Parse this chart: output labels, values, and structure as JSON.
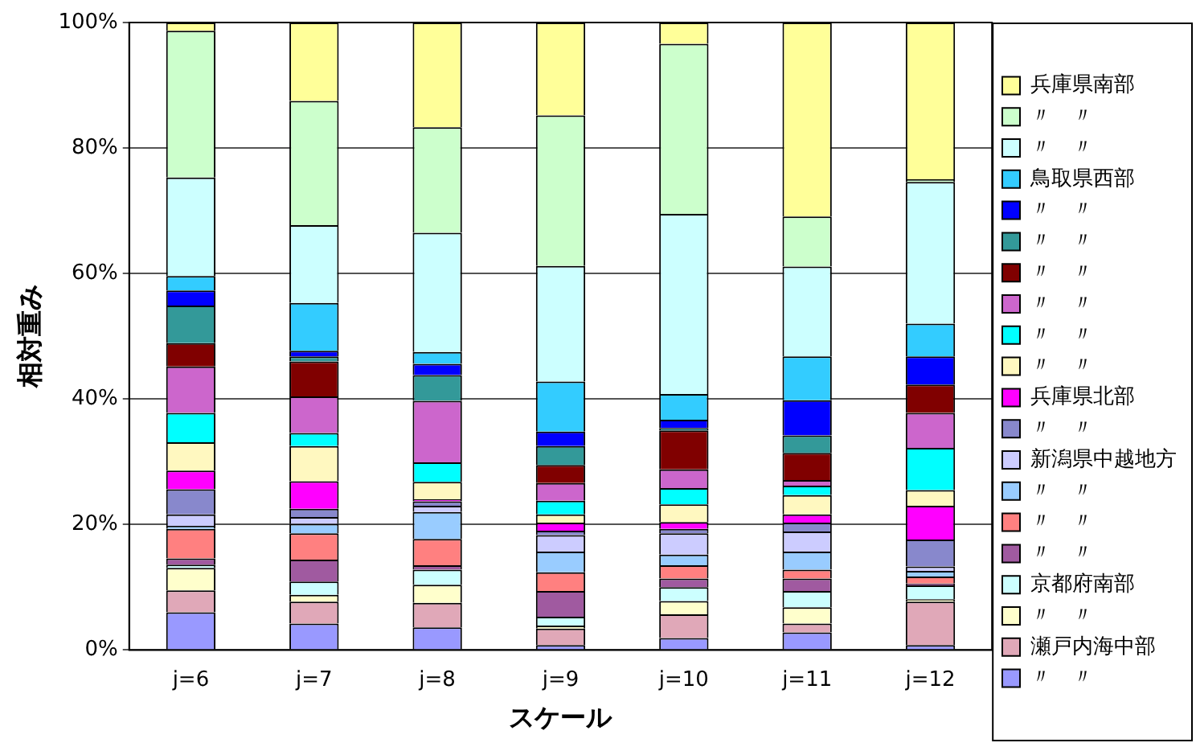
{
  "chart_data": {
    "type": "bar",
    "stacked": true,
    "xlabel": "スケール",
    "ylabel": "相対重み",
    "categories": [
      "j=6",
      "j=7",
      "j=8",
      "j=9",
      "j=10",
      "j=11",
      "j=12"
    ],
    "ylim": [
      0,
      100
    ],
    "yticks": [
      {
        "value": 0,
        "label": "0%"
      },
      {
        "value": 20,
        "label": "20%"
      },
      {
        "value": 40,
        "label": "40%"
      },
      {
        "value": 60,
        "label": "60%"
      },
      {
        "value": 80,
        "label": "80%"
      },
      {
        "value": 100,
        "label": "100%"
      }
    ],
    "grid": "y",
    "legend": "right",
    "series": [
      {
        "name": "〃　〃",
        "color": "#9999ff",
        "values": [
          6,
          4.2,
          3.6,
          0.8,
          1.9,
          2.8,
          0.8
        ]
      },
      {
        "name": "瀬戸内海中部",
        "color": "#e0a8b8",
        "values": [
          3.5,
          3.5,
          3.9,
          2.6,
          3.8,
          1.4,
          6.9
        ]
      },
      {
        "name": "〃　〃",
        "color": "#ffffcc",
        "values": [
          3.6,
          1.1,
          2.9,
          0.5,
          2.1,
          2.6,
          0.4
        ]
      },
      {
        "name": "京都府南部",
        "color": "#ccffff",
        "values": [
          0.5,
          2.1,
          2.4,
          1.4,
          2.2,
          2.6,
          2.2
        ]
      },
      {
        "name": "〃　〃",
        "color": "#a05aa0",
        "values": [
          1,
          3.5,
          0.7,
          4.1,
          1.4,
          2,
          0.3
        ]
      },
      {
        "name": "〃　〃",
        "color": "#ff8080",
        "values": [
          4.7,
          4.2,
          4.2,
          3,
          2.1,
          1.4,
          1.1
        ]
      },
      {
        "name": "〃　〃",
        "color": "#99ccff",
        "values": [
          0.5,
          1.5,
          4.3,
          3.3,
          1.7,
          2.9,
          0.9
        ]
      },
      {
        "name": "新潟県中越地方",
        "color": "#ccccff",
        "values": [
          1.8,
          1.1,
          1,
          2.6,
          3.4,
          3.2,
          0.7
        ]
      },
      {
        "name": "〃　〃",
        "color": "#8888cc",
        "values": [
          4,
          1.3,
          0.7,
          0.7,
          0.7,
          1.4,
          4.3
        ]
      },
      {
        "name": "兵庫県北部",
        "color": "#ff00ff",
        "values": [
          3,
          4.4,
          0.3,
          1.3,
          1.1,
          1.3,
          5.4
        ]
      },
      {
        "name": "〃　〃",
        "color": "#fff8c0",
        "values": [
          4.5,
          5.6,
          2.8,
          1.3,
          2.8,
          3.1,
          2.5
        ]
      },
      {
        "name": "〃　〃",
        "color": "#00ffff",
        "values": [
          4.7,
          2.1,
          3.1,
          2.2,
          2.6,
          1.5,
          6.7
        ]
      },
      {
        "name": "〃　〃",
        "color": "#cc66cc",
        "values": [
          7.4,
          5.8,
          9.8,
          2.8,
          3,
          0.9,
          5.6
        ]
      },
      {
        "name": "〃　〃",
        "color": "#800000",
        "values": [
          3.7,
          5.6,
          0,
          2.9,
          6.2,
          4.3,
          4.5
        ]
      },
      {
        "name": "〃　〃",
        "color": "#339999",
        "values": [
          6,
          0.8,
          4.1,
          3,
          0.4,
          2.8,
          0
        ]
      },
      {
        "name": "〃　〃",
        "color": "#0000ff",
        "values": [
          2.4,
          0.9,
          1.8,
          2.3,
          1.3,
          5.6,
          4.5
        ]
      },
      {
        "name": "鳥取県西部",
        "color": "#33ccff",
        "values": [
          2.3,
          7.6,
          1.9,
          8,
          4.1,
          7,
          5.2
        ]
      },
      {
        "name": "〃　〃",
        "color": "#ccffff",
        "values": [
          15.7,
          12.4,
          19,
          18.4,
          28.7,
          14.3,
          22.6
        ]
      },
      {
        "name": "〃　〃",
        "color": "#ccffcc",
        "values": [
          23.4,
          19.8,
          16.8,
          24,
          27.1,
          8,
          0.4
        ]
      },
      {
        "name": "兵庫県南部",
        "color": "#ffff99",
        "values": [
          1.3,
          12.5,
          16.7,
          14.8,
          3.4,
          30.9,
          25
        ]
      }
    ]
  }
}
